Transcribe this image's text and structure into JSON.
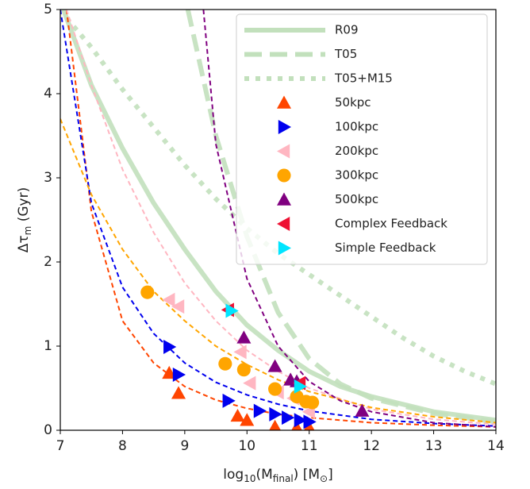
{
  "chart_data": {
    "type": "line",
    "xlabel": [
      "log",
      "10",
      "(M",
      "final",
      ") [M",
      "⊙",
      "]"
    ],
    "ylabel": [
      "Δτ",
      "m",
      " (Gyr)"
    ],
    "xlim": [
      7,
      14
    ],
    "ylim": [
      0,
      5
    ],
    "xticks": [
      7,
      8,
      9,
      10,
      11,
      12,
      13,
      14
    ],
    "yticks": [
      0,
      1,
      2,
      3,
      4,
      5
    ],
    "legend": "upper right",
    "series": [
      {
        "name": "R09",
        "type": "line",
        "style": "solid",
        "linewidth": 6,
        "color": "#c2e0bc",
        "x": [
          7.05,
          7.5,
          8,
          8.5,
          9,
          9.5,
          10,
          10.5,
          11,
          11.5,
          12,
          13,
          14
        ],
        "values": [
          5.0,
          4.1,
          3.35,
          2.7,
          2.15,
          1.65,
          1.25,
          0.95,
          0.7,
          0.52,
          0.4,
          0.22,
          0.12
        ]
      },
      {
        "name": "T05",
        "type": "line",
        "style": "dashed",
        "linewidth": 6,
        "color": "#c2e0bc",
        "x": [
          9.05,
          9.5,
          10,
          10.5,
          11,
          11.5,
          12,
          13,
          14
        ],
        "values": [
          5.0,
          3.5,
          2.3,
          1.4,
          0.85,
          0.55,
          0.38,
          0.2,
          0.1
        ]
      },
      {
        "name": "T05+M15",
        "type": "line",
        "style": "dotted",
        "linewidth": 6,
        "color": "#c2e0bc",
        "x": [
          7.1,
          7.5,
          8,
          8.5,
          9,
          9.5,
          10,
          10.5,
          11,
          11.5,
          12,
          12.5,
          13,
          13.5,
          14
        ],
        "values": [
          4.9,
          4.55,
          4.05,
          3.6,
          3.15,
          2.75,
          2.4,
          2.1,
          1.85,
          1.6,
          1.35,
          1.1,
          0.88,
          0.7,
          0.55
        ]
      },
      {
        "type": "line",
        "style": "dashed",
        "linewidth": 2,
        "color": "#ff4500",
        "x": [
          7.1,
          7.5,
          8,
          8.5,
          9,
          9.5,
          10,
          10.5,
          11,
          12,
          13,
          14
        ],
        "values": [
          5.0,
          2.6,
          1.3,
          0.8,
          0.52,
          0.36,
          0.26,
          0.19,
          0.15,
          0.09,
          0.06,
          0.04
        ]
      },
      {
        "type": "line",
        "style": "dashed",
        "linewidth": 2,
        "color": "#0000ee",
        "x": [
          7.0,
          7.5,
          8,
          8.5,
          9,
          9.5,
          10,
          10.5,
          11,
          12,
          13,
          14
        ],
        "values": [
          5.0,
          2.7,
          1.7,
          1.15,
          0.8,
          0.57,
          0.42,
          0.31,
          0.23,
          0.13,
          0.08,
          0.05
        ]
      },
      {
        "type": "line",
        "style": "dashed",
        "linewidth": 2,
        "color": "#ffb6c1",
        "x": [
          7.1,
          7.5,
          8,
          8.5,
          9,
          9.5,
          10,
          10.5,
          11,
          12,
          13,
          14
        ],
        "values": [
          5.0,
          4.1,
          3.1,
          2.35,
          1.75,
          1.3,
          0.95,
          0.7,
          0.5,
          0.25,
          0.13,
          0.07
        ]
      },
      {
        "type": "line",
        "style": "dashed",
        "linewidth": 2,
        "color": "#ffa500",
        "x": [
          7.0,
          7.5,
          8,
          8.5,
          9,
          9.5,
          10,
          10.5,
          11,
          12,
          13,
          14
        ],
        "values": [
          3.7,
          2.8,
          2.15,
          1.65,
          1.3,
          1.0,
          0.78,
          0.6,
          0.46,
          0.27,
          0.16,
          0.09
        ]
      },
      {
        "type": "line",
        "style": "dashed",
        "linewidth": 2,
        "color": "#800080",
        "x": [
          9.3,
          9.5,
          10,
          10.5,
          11,
          11.5,
          12,
          13,
          14
        ],
        "values": [
          5.0,
          3.4,
          1.8,
          1.0,
          0.58,
          0.35,
          0.22,
          0.09,
          0.04
        ]
      },
      {
        "name": "50kpc",
        "type": "scatter",
        "marker": "^",
        "color": "#ff4500",
        "x": [
          8.75,
          8.9,
          9.85,
          10.0,
          10.45,
          10.8,
          11.0
        ],
        "values": [
          0.68,
          0.44,
          0.17,
          0.12,
          0.04,
          0.03,
          0.03
        ]
      },
      {
        "name": "100kpc",
        "type": "scatter",
        "marker": ">",
        "color": "#0000ee",
        "x": [
          8.75,
          8.9,
          9.7,
          10.2,
          10.45,
          10.65,
          10.85,
          11.0
        ],
        "values": [
          0.99,
          0.66,
          0.35,
          0.23,
          0.19,
          0.15,
          0.12,
          0.1
        ]
      },
      {
        "name": "200kpc",
        "type": "scatter",
        "marker": "<",
        "color": "#ffb6c1",
        "x": [
          8.75,
          8.9,
          9.9,
          10.05,
          10.5,
          10.75,
          11.0
        ],
        "values": [
          1.55,
          1.47,
          0.93,
          0.56,
          0.45,
          0.38,
          0.22
        ]
      },
      {
        "name": "300kpc",
        "type": "scatter",
        "marker": "o",
        "color": "#ffa500",
        "x": [
          8.4,
          9.65,
          9.95,
          10.45,
          10.8,
          10.95,
          11.05
        ],
        "values": [
          1.64,
          0.79,
          0.72,
          0.49,
          0.4,
          0.34,
          0.33
        ]
      },
      {
        "name": "500kpc",
        "type": "scatter",
        "marker": "^",
        "color": "#800080",
        "x": [
          9.95,
          10.45,
          10.7,
          10.8,
          11.85
        ],
        "values": [
          1.1,
          0.76,
          0.6,
          0.58,
          0.23
        ]
      },
      {
        "name": "Complex Feedback",
        "type": "scatter",
        "marker": "<",
        "color": "#ee1133",
        "x": [
          9.7,
          10.85
        ],
        "values": [
          1.43,
          0.56
        ]
      },
      {
        "name": "Simple Feedback",
        "type": "scatter",
        "marker": ">",
        "color": "#00e5ff",
        "x": [
          9.75,
          10.85
        ],
        "values": [
          1.42,
          0.52
        ]
      }
    ]
  }
}
